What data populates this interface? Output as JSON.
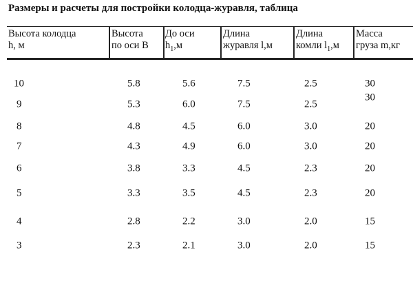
{
  "title": "Размеры и расчеты для постройки колодца-журавля, таблица",
  "table": {
    "headers": [
      {
        "line1": "Высота колодца",
        "line2": "h, м"
      },
      {
        "line1": "Высота",
        "line2": "по оси В"
      },
      {
        "line1": "До оси",
        "line2": "h",
        "sub": "1",
        "tail": ",м"
      },
      {
        "line1": "Длина",
        "line2": "журавля l,м"
      },
      {
        "line1": "Длина",
        "line2": "комли l",
        "sub": "1",
        "tail": ",м"
      },
      {
        "line1": "Масса",
        "line2": "груза m,кг"
      }
    ],
    "rows": [
      [
        "10",
        "5.8",
        "5.6",
        "7.5",
        "2.5",
        "30"
      ],
      [
        "9",
        "5.3",
        "6.0",
        "7.5",
        "2.5",
        "30"
      ],
      [
        "8",
        "4.8",
        "4.5",
        "6.0",
        "3.0",
        "20"
      ],
      [
        "7",
        "4.3",
        "4.9",
        "6.0",
        "3.0",
        "20"
      ],
      [
        "6",
        "3.8",
        "3.3",
        "4.5",
        "2.3",
        "20"
      ],
      [
        "5",
        "3.3",
        "3.5",
        "4.5",
        "2.3",
        "20"
      ],
      [
        "4",
        "2.8",
        "2.2",
        "3.0",
        "2.0",
        "15"
      ],
      [
        "3",
        "2.3",
        "2.1",
        "3.0",
        "2.0",
        "15"
      ]
    ]
  }
}
